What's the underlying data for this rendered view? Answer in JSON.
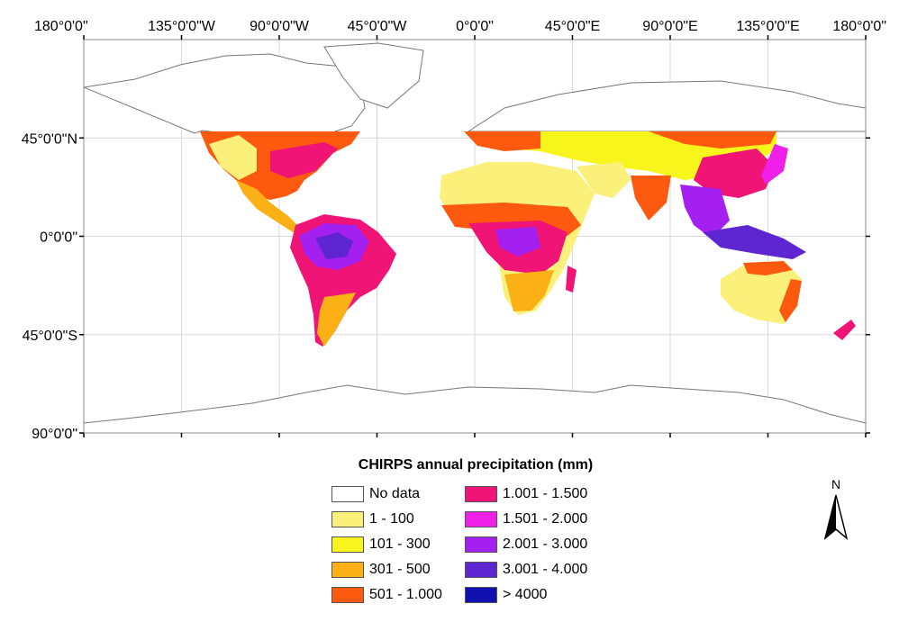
{
  "map": {
    "legend_title": "CHIRPS annual precipitation (mm)",
    "lon_ticks": [
      "180°0'0\"",
      "135°0'0\"W",
      "90°0'0\"W",
      "45°0'0\"W",
      "0°0'0\"",
      "45°0'0\"E",
      "90°0'0\"E",
      "135°0'0\"E",
      "180°0'0\""
    ],
    "lat_ticks": [
      "45°0'0\"N",
      "0°0'0\"",
      "45°0'0\"S",
      "90°0'0\""
    ],
    "north_label": "N",
    "legend": [
      {
        "label": "No data",
        "color": "#ffffff"
      },
      {
        "label": "1 - 100",
        "color": "#faf07a"
      },
      {
        "label": "101 - 300",
        "color": "#f8f51c"
      },
      {
        "label": "301 - 500",
        "color": "#fbb016"
      },
      {
        "label": "501 - 1.000",
        "color": "#fd5a10"
      },
      {
        "label": "1.001 - 1.500",
        "color": "#ef1476"
      },
      {
        "label": "1.501 - 2.000",
        "color": "#ee1fe6"
      },
      {
        "label": "2.001 - 3.000",
        "color": "#a420f0"
      },
      {
        "label": "3.001 - 4.000",
        "color": "#5e26d0"
      },
      {
        "label": "> 4000",
        "color": "#1010b0"
      }
    ]
  }
}
